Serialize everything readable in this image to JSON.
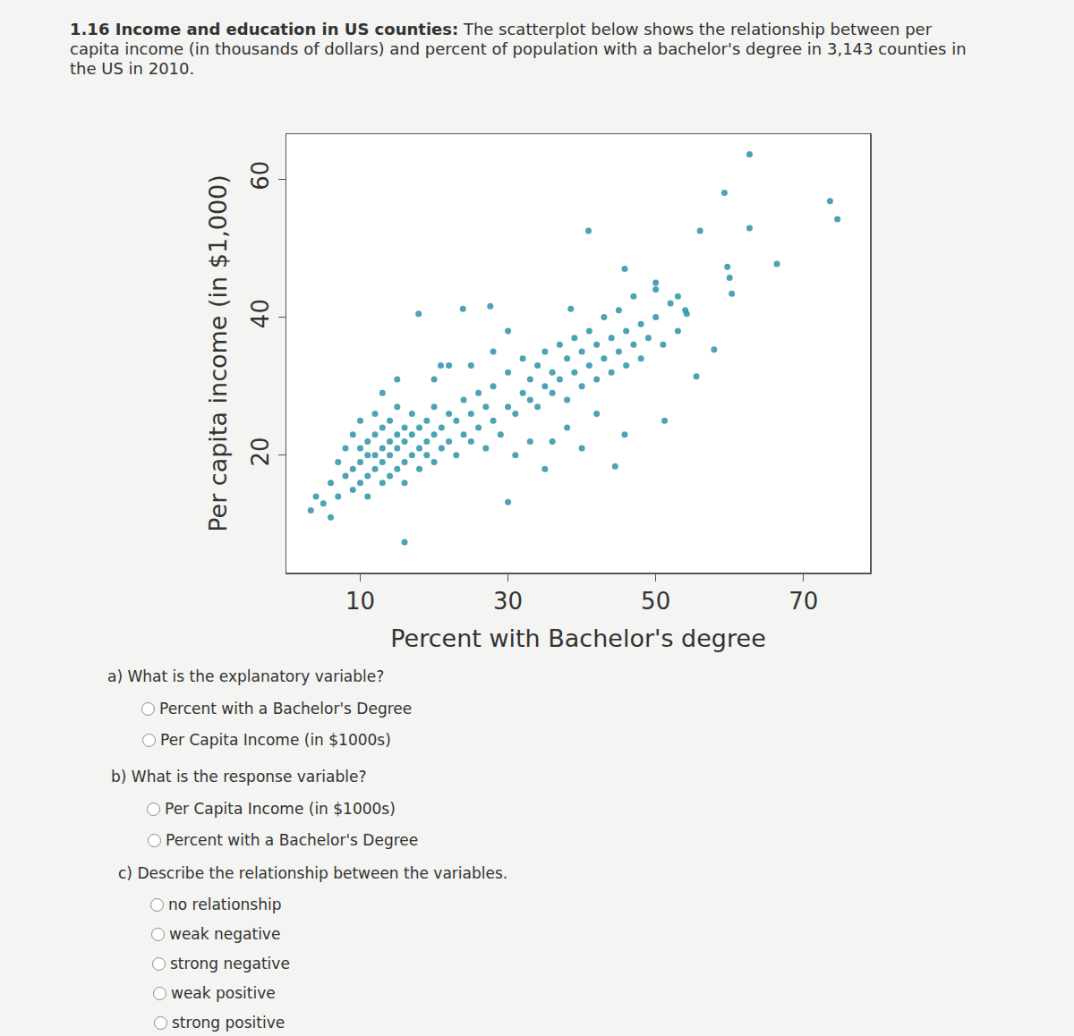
{
  "problem": {
    "number": "1.16",
    "heading": "Income and education in US counties:",
    "text": "The scatterplot below shows the relationship between per capita income (in thousands of dollars) and percent of population with a bachelor's degree in 3,143 counties in the US in 2010."
  },
  "chart_data": {
    "type": "scatter",
    "x_label": "Percent with Bachelor's degree",
    "y_label": "Per capita income (in $1,000)",
    "color": "#2b93a8",
    "x": [
      3.3,
      5,
      6,
      7,
      7,
      8,
      8,
      9,
      9,
      9,
      10,
      10,
      10,
      10,
      11,
      11,
      11,
      11,
      12,
      12,
      12,
      12,
      13,
      13,
      13,
      13,
      14,
      14,
      14,
      14,
      15,
      15,
      15,
      15,
      16,
      16,
      16,
      16,
      17,
      17,
      17,
      18,
      18,
      18,
      19,
      19,
      19,
      20,
      20,
      20,
      21,
      21,
      22,
      22,
      23,
      23,
      24,
      24,
      25,
      25,
      26,
      26,
      27,
      27,
      28,
      28,
      29,
      30,
      30,
      31,
      32,
      32,
      33,
      33,
      34,
      34,
      35,
      35,
      36,
      36,
      37,
      37,
      38,
      38,
      39,
      39,
      40,
      40,
      41,
      41,
      42,
      42,
      43,
      43,
      44,
      44,
      45,
      45,
      46,
      46,
      47,
      47,
      48,
      48,
      49,
      50,
      50,
      51,
      52,
      53,
      54,
      31,
      33,
      35,
      38,
      40,
      42,
      36,
      6,
      4,
      13,
      15,
      20,
      25,
      28,
      30,
      22,
      62.7,
      59.3,
      56,
      62.7,
      73.6,
      74.6,
      66.4,
      40.9,
      27.6,
      23.9,
      17.9,
      20.9,
      59.7,
      60,
      60.3,
      57.9,
      55.5,
      51.2,
      45.8,
      44.5,
      30,
      16,
      38.5,
      45.8,
      50,
      53,
      54.2
    ],
    "values": [
      12,
      13,
      16,
      14,
      19,
      17,
      21,
      15,
      18,
      23,
      16,
      19,
      21,
      25,
      14,
      17,
      20,
      22,
      18,
      20,
      23,
      26,
      16,
      19,
      21,
      24,
      17,
      20,
      22,
      25,
      18,
      21,
      23,
      27,
      16,
      19,
      22,
      24,
      20,
      23,
      26,
      18,
      21,
      24,
      20,
      22,
      25,
      19,
      23,
      27,
      21,
      24,
      22,
      26,
      20,
      25,
      23,
      28,
      22,
      26,
      24,
      29,
      21,
      27,
      25,
      30,
      23,
      27,
      32,
      26,
      29,
      34,
      28,
      31,
      27,
      33,
      30,
      35,
      29,
      32,
      31,
      36,
      28,
      34,
      32,
      37,
      30,
      35,
      33,
      38,
      31,
      36,
      34,
      40,
      32,
      37,
      35,
      41,
      33,
      38,
      36,
      43,
      34,
      39,
      37,
      40,
      44,
      36,
      42,
      38,
      41,
      20,
      22,
      18,
      24,
      21,
      26,
      22,
      11,
      14,
      29,
      31,
      31,
      33,
      35,
      38,
      33,
      63.6,
      58,
      52.5,
      52.9,
      56.8,
      54.2,
      47.7,
      52.5,
      41.6,
      41.2,
      40.5,
      33,
      47.3,
      45.7,
      43.4,
      35.3,
      31.4,
      25,
      23,
      18.4,
      13.2,
      7.4,
      41.2,
      47,
      45,
      43,
      40.5
    ],
    "xlim": [
      0,
      79
    ],
    "xticks": [
      10,
      30,
      50,
      70
    ],
    "ylim": [
      3,
      66.5
    ],
    "yticks": [
      20,
      40,
      60
    ],
    "grid": false
  },
  "questions": [
    {
      "text": "a) What is the explanatory variable?",
      "options": [
        "Percent with a Bachelor's Degree",
        "Per Capita Income (in $1000s)"
      ]
    },
    {
      "text": "b) What is the response variable?",
      "options": [
        "Per Capita Income (in $1000s)",
        "Percent with a Bachelor's Degree"
      ]
    },
    {
      "text": "c) Describe the relationship between the variables.",
      "options": [
        "no relationship",
        "weak negative",
        "strong negative",
        "weak positive",
        "strong positive"
      ]
    }
  ]
}
